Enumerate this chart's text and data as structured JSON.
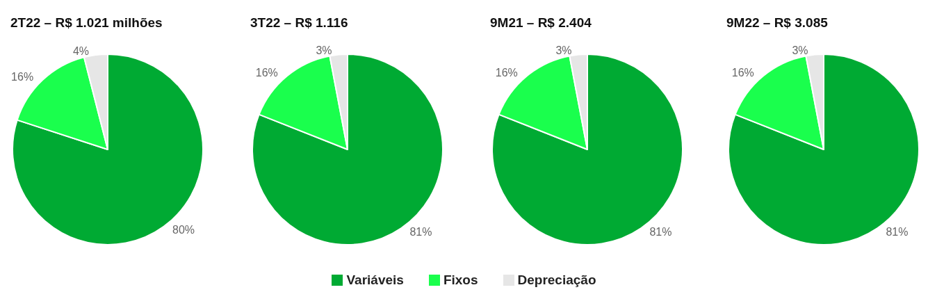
{
  "chart_data": [
    {
      "type": "pie",
      "title": "2T22 – R$ 1.021 milhões",
      "categories": [
        "Variáveis",
        "Fixos",
        "Depreciação"
      ],
      "values": [
        80,
        16,
        4
      ],
      "value_labels": [
        "80%",
        "16%",
        "4%"
      ],
      "colors": [
        "#00aa33",
        "#1aff4d",
        "#e6e6e6"
      ],
      "legend": "bottom"
    },
    {
      "type": "pie",
      "title": "3T22 – R$ 1.116",
      "categories": [
        null,
        null,
        null
      ],
      "values": [
        81,
        16,
        3
      ],
      "value_labels": [
        "81%",
        "16%",
        "3%"
      ],
      "colors": [
        "#00aa33",
        "#1aff4d",
        "#e6e6e6"
      ]
    },
    {
      "type": "pie",
      "title": "9M21 – R$ 2.404",
      "categories": [
        null,
        null,
        null
      ],
      "values": [
        81,
        16,
        3
      ],
      "value_labels": [
        "81%",
        "16%",
        "3%"
      ],
      "colors": [
        "#00aa33",
        "#1aff4d",
        "#e6e6e6"
      ]
    },
    {
      "type": "pie",
      "title": "9M22 – R$ 3.085",
      "categories": [
        null,
        null,
        null
      ],
      "values": [
        81,
        16,
        3
      ],
      "value_labels": [
        "81%",
        "16%",
        "3%"
      ],
      "colors": [
        "#00aa33",
        "#1aff4d",
        "#e6e6e6"
      ]
    }
  ]
}
